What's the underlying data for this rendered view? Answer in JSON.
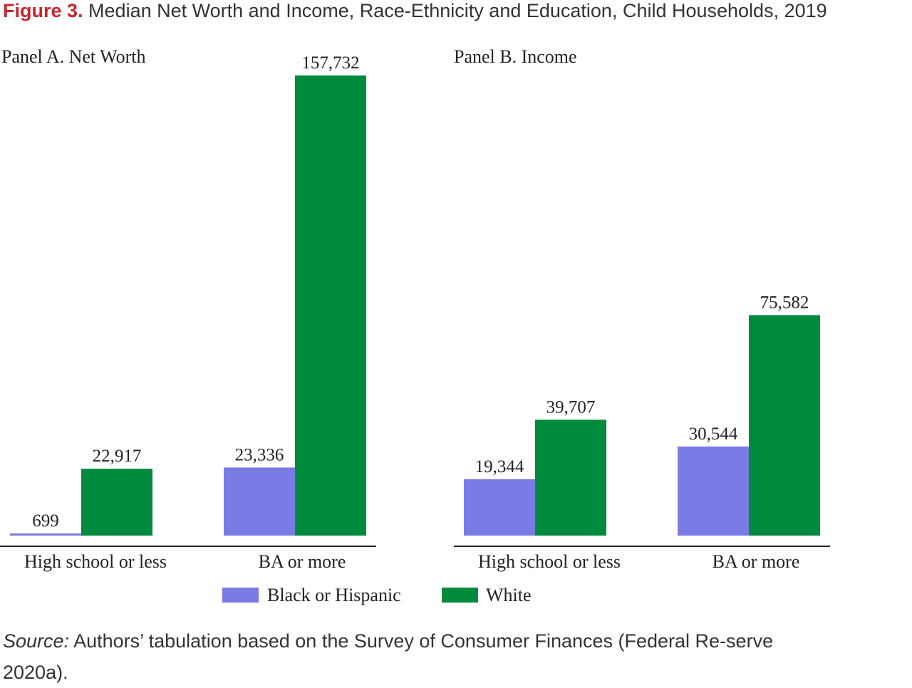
{
  "figure_label": "Figure 3.",
  "figure_title": "Median Net Worth and Income, Race-Ethnicity and Education, Child Households, 2019",
  "source_lead": "Source:",
  "source_text": " Authors’ tabulation based on the Survey of Consumer Finances (Federal Re-serve 2020a).",
  "colors": {
    "black_hispanic": "#7b7be6",
    "white": "#008a3e",
    "axis": "#222222",
    "text": "#222222"
  },
  "chart_data": [
    {
      "type": "bar",
      "title": "Panel A. Net Worth",
      "categories": [
        "High school or less",
        "BA or more"
      ],
      "series": [
        {
          "name": "Black or Hispanic",
          "values": [
            699,
            23336
          ],
          "labels": [
            "699",
            "23,336"
          ]
        },
        {
          "name": "White",
          "values": [
            22917,
            157732
          ],
          "labels": [
            "22,917",
            "157,732"
          ]
        }
      ],
      "ylim": [
        0,
        157732
      ]
    },
    {
      "type": "bar",
      "title": "Panel B. Income",
      "categories": [
        "High school or less",
        "BA or more"
      ],
      "series": [
        {
          "name": "Black or Hispanic",
          "values": [
            19344,
            30544
          ],
          "labels": [
            "19,344",
            "30,544"
          ]
        },
        {
          "name": "White",
          "values": [
            39707,
            75582
          ],
          "labels": [
            "39,707",
            "75,582"
          ]
        }
      ],
      "ylim": [
        0,
        157732
      ]
    }
  ],
  "legend": [
    {
      "label": "Black or Hispanic",
      "color": "#7b7be6"
    },
    {
      "label": "White",
      "color": "#008a3e"
    }
  ]
}
